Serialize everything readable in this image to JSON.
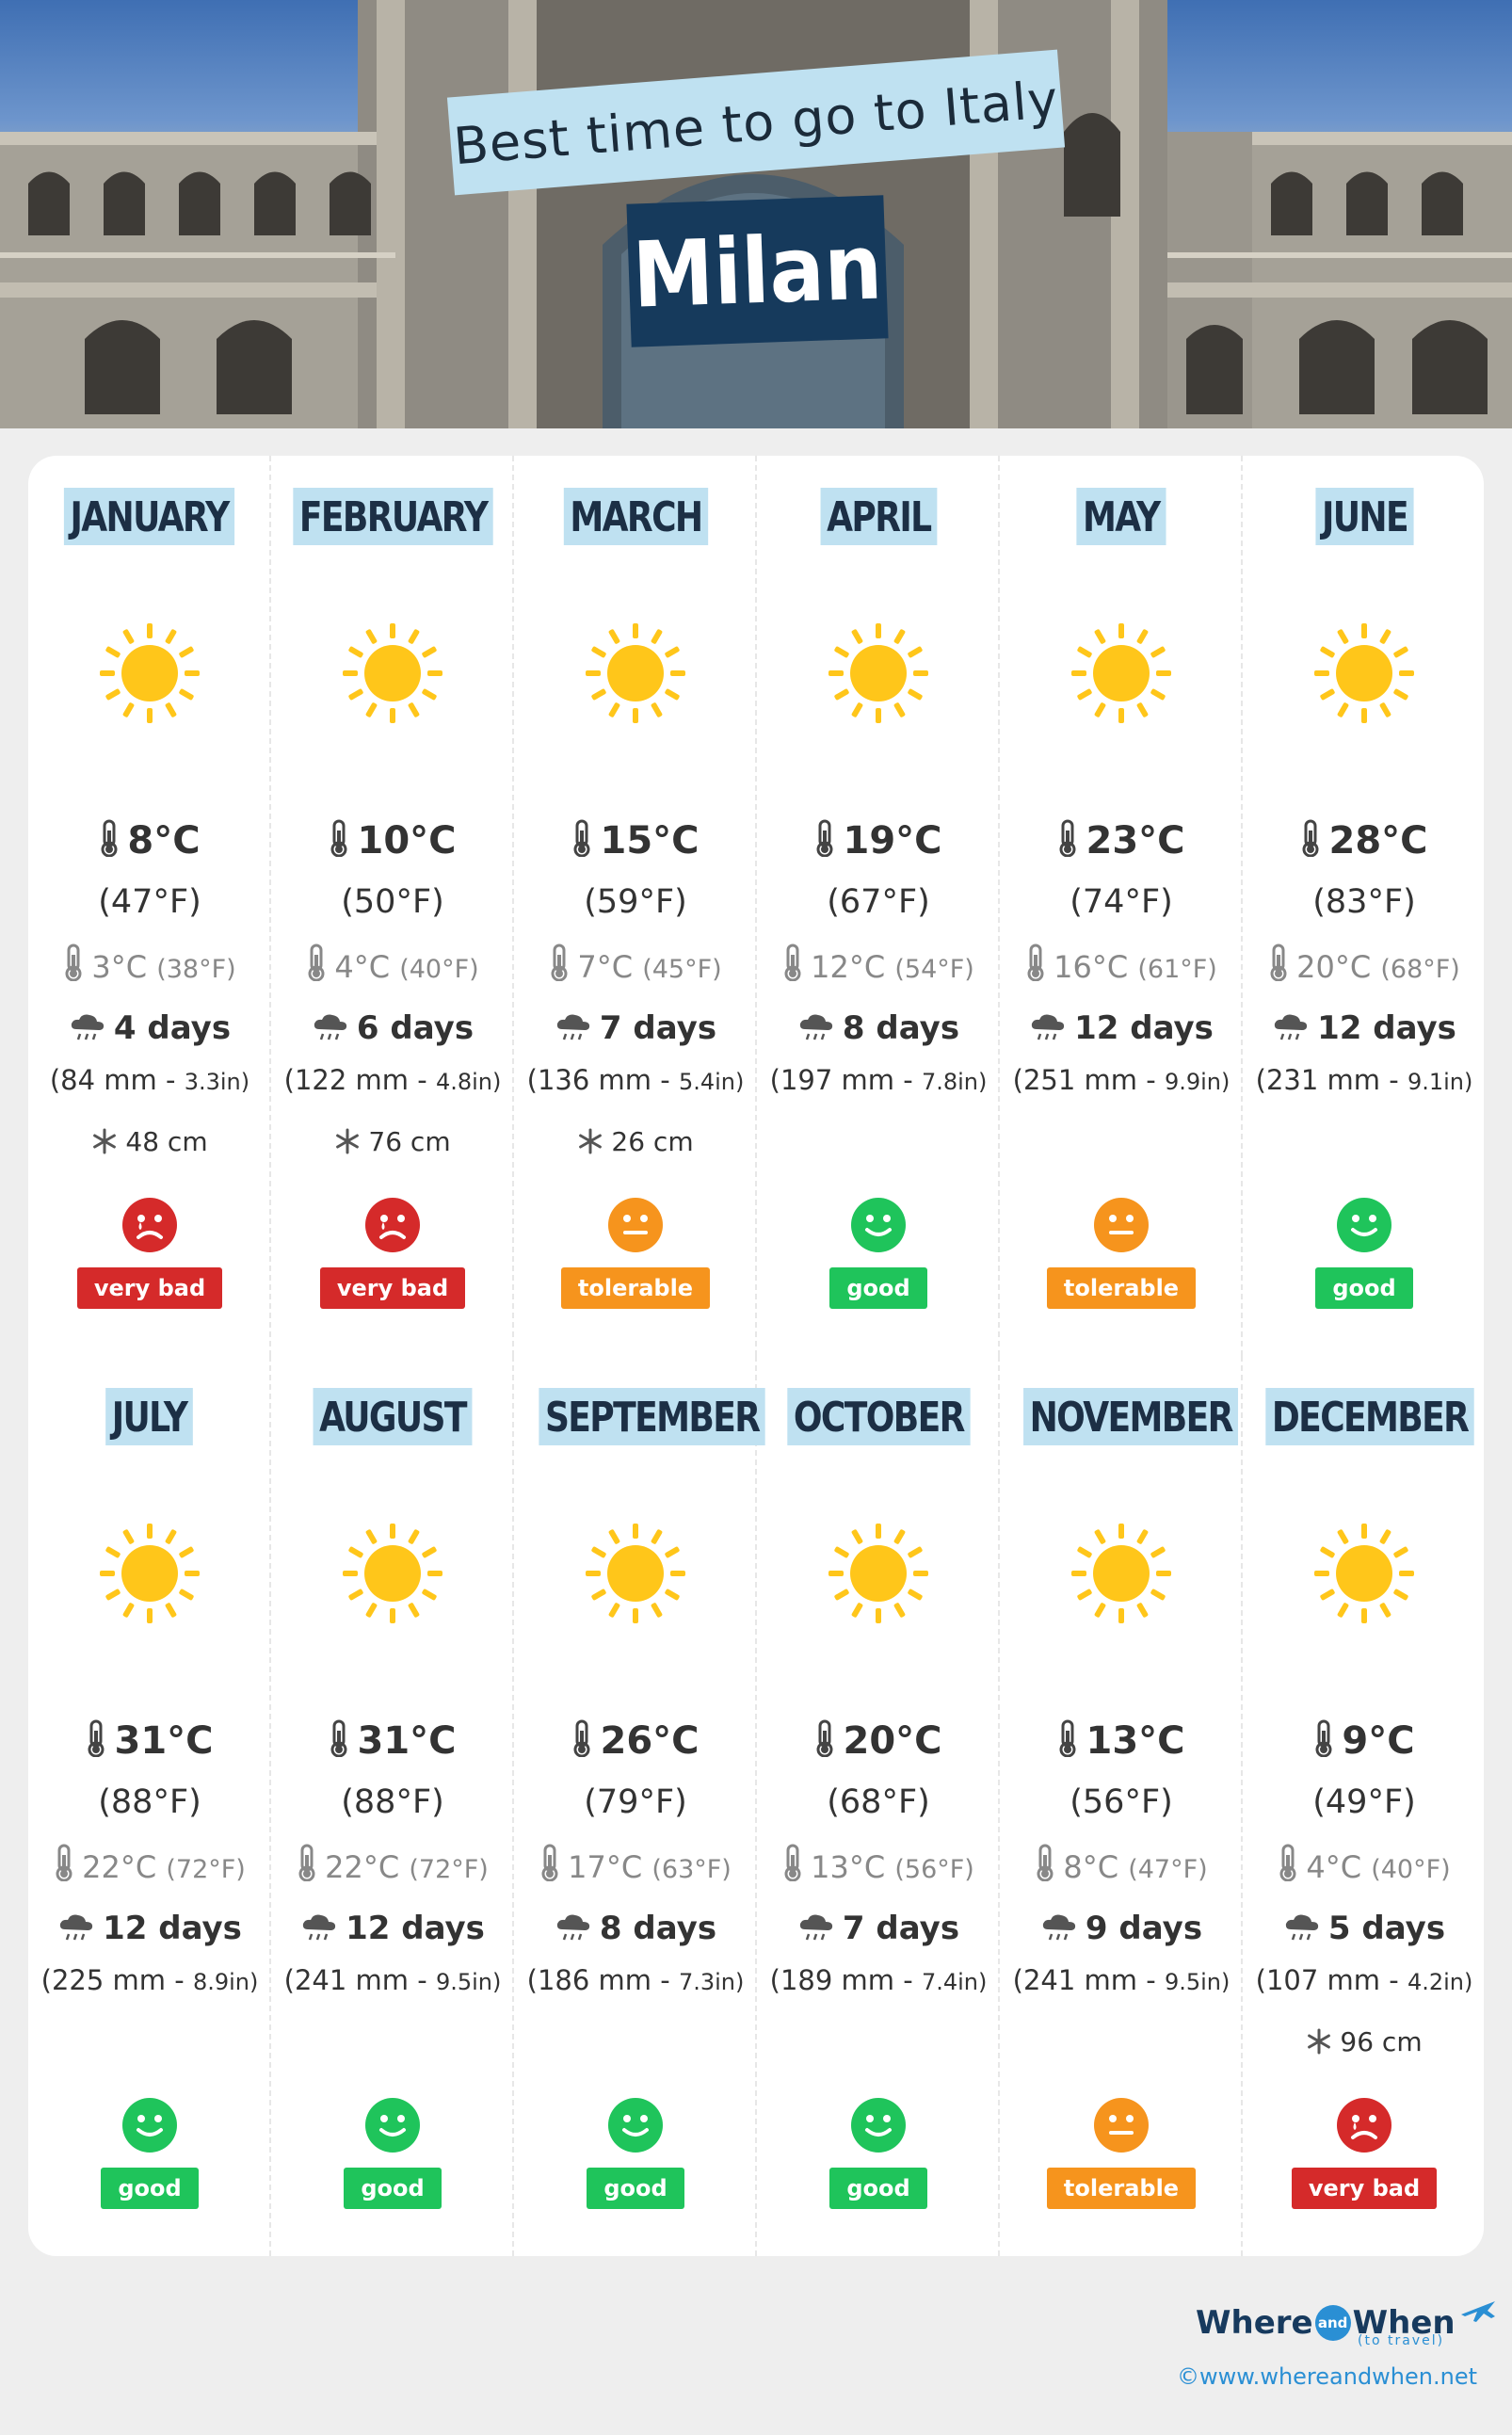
{
  "header": {
    "subtitle": "Best time to go to Italy",
    "city": "Milan"
  },
  "colors": {
    "very bad": "#d52a2a",
    "tolerable": "#f6941d",
    "good": "#1fc45b",
    "label_bg": "#bfe1f1",
    "city_bg": "#163a5c",
    "sun": "#ffc61a"
  },
  "months": [
    {
      "name": "JANUARY",
      "weather_icon": "sun-icon",
      "tmax": "8°C",
      "tmax_f": "(47°F)",
      "tmin": "3°C",
      "tmin_f": "(38°F)",
      "rain_days": "4 days",
      "rain_mm": "(84 mm - ",
      "rain_in": "3.3in)",
      "snow": "48 cm",
      "rating": "very bad",
      "face": "sad-face-icon"
    },
    {
      "name": "FEBRUARY",
      "weather_icon": "sun-icon",
      "tmax": "10°C",
      "tmax_f": "(50°F)",
      "tmin": "4°C",
      "tmin_f": "(40°F)",
      "rain_days": "6 days",
      "rain_mm": "(122 mm - ",
      "rain_in": "4.8in)",
      "snow": "76 cm",
      "rating": "very bad",
      "face": "sad-face-icon"
    },
    {
      "name": "MARCH",
      "weather_icon": "sun-icon",
      "tmax": "15°C",
      "tmax_f": "(59°F)",
      "tmin": "7°C",
      "tmin_f": "(45°F)",
      "rain_days": "7 days",
      "rain_mm": "(136 mm - ",
      "rain_in": "5.4in)",
      "snow": "26 cm",
      "rating": "tolerable",
      "face": "neutral-face-icon"
    },
    {
      "name": "APRIL",
      "weather_icon": "sun-icon",
      "tmax": "19°C",
      "tmax_f": "(67°F)",
      "tmin": "12°C",
      "tmin_f": "(54°F)",
      "rain_days": "8 days",
      "rain_mm": "(197 mm - ",
      "rain_in": "7.8in)",
      "snow": "",
      "rating": "good",
      "face": "happy-face-icon"
    },
    {
      "name": "MAY",
      "weather_icon": "sun-icon",
      "tmax": "23°C",
      "tmax_f": "(74°F)",
      "tmin": "16°C",
      "tmin_f": "(61°F)",
      "rain_days": "12 days",
      "rain_mm": "(251 mm - ",
      "rain_in": "9.9in)",
      "snow": "",
      "rating": "tolerable",
      "face": "neutral-face-icon"
    },
    {
      "name": "JUNE",
      "weather_icon": "sun-icon",
      "tmax": "28°C",
      "tmax_f": "(83°F)",
      "tmin": "20°C",
      "tmin_f": "(68°F)",
      "rain_days": "12 days",
      "rain_mm": "(231 mm - ",
      "rain_in": "9.1in)",
      "snow": "",
      "rating": "good",
      "face": "happy-face-icon"
    },
    {
      "name": "JULY",
      "weather_icon": "sun-icon",
      "tmax": "31°C",
      "tmax_f": "(88°F)",
      "tmin": "22°C",
      "tmin_f": "(72°F)",
      "rain_days": "12 days",
      "rain_mm": "(225 mm - ",
      "rain_in": "8.9in)",
      "snow": "",
      "rating": "good",
      "face": "happy-face-icon"
    },
    {
      "name": "AUGUST",
      "weather_icon": "sun-icon",
      "tmax": "31°C",
      "tmax_f": "(88°F)",
      "tmin": "22°C",
      "tmin_f": "(72°F)",
      "rain_days": "12 days",
      "rain_mm": "(241 mm - ",
      "rain_in": "9.5in)",
      "snow": "",
      "rating": "good",
      "face": "happy-face-icon"
    },
    {
      "name": "SEPTEMBER",
      "weather_icon": "sun-icon",
      "tmax": "26°C",
      "tmax_f": "(79°F)",
      "tmin": "17°C",
      "tmin_f": "(63°F)",
      "rain_days": "8 days",
      "rain_mm": "(186 mm - ",
      "rain_in": "7.3in)",
      "snow": "",
      "rating": "good",
      "face": "happy-face-icon"
    },
    {
      "name": "OCTOBER",
      "weather_icon": "sun-icon",
      "tmax": "20°C",
      "tmax_f": "(68°F)",
      "tmin": "13°C",
      "tmin_f": "(56°F)",
      "rain_days": "7 days",
      "rain_mm": "(189 mm - ",
      "rain_in": "7.4in)",
      "snow": "",
      "rating": "good",
      "face": "happy-face-icon"
    },
    {
      "name": "NOVEMBER",
      "weather_icon": "sun-icon",
      "tmax": "13°C",
      "tmax_f": "(56°F)",
      "tmin": "8°C",
      "tmin_f": "(47°F)",
      "rain_days": "9 days",
      "rain_mm": "(241 mm - ",
      "rain_in": "9.5in)",
      "snow": "",
      "rating": "tolerable",
      "face": "neutral-face-icon"
    },
    {
      "name": "DECEMBER",
      "weather_icon": "sun-icon",
      "tmax": "9°C",
      "tmax_f": "(49°F)",
      "tmin": "4°C",
      "tmin_f": "(40°F)",
      "rain_days": "5 days",
      "rain_mm": "(107 mm - ",
      "rain_in": "4.2in)",
      "snow": "96 cm",
      "rating": "very bad",
      "face": "sad-face-icon"
    }
  ],
  "footer": {
    "brand_where": "Where",
    "brand_and": "and",
    "brand_when": "When",
    "brand_tagline": "(to travel)",
    "copyright": "©www.whereandwhen.net"
  }
}
